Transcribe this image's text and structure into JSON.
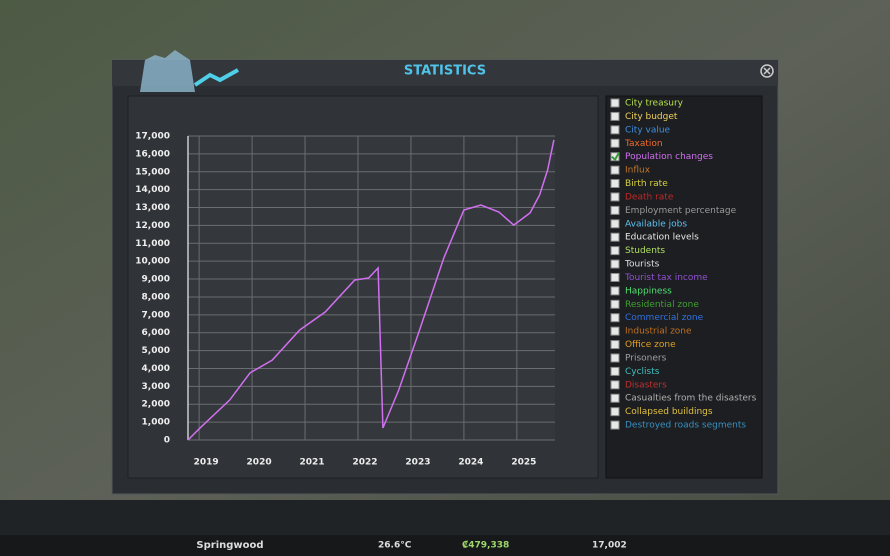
{
  "window": {
    "title": "STATISTICS"
  },
  "chart": {
    "type": "line",
    "color": "#d070f0",
    "x": [
      2018.79,
      2019.02,
      2019.58,
      2019.96,
      2020.38,
      2020.9,
      2021.38,
      2021.94,
      2022.2,
      2022.38,
      2022.47,
      2022.77,
      2023.15,
      2023.62,
      2024.0,
      2024.32,
      2024.66,
      2024.94,
      2025.25,
      2025.43,
      2025.58,
      2025.7
    ],
    "values": [
      0,
      680,
      2240,
      3750,
      4470,
      6150,
      7160,
      8950,
      9060,
      9620,
      670,
      2800,
      6040,
      10180,
      12860,
      13140,
      12750,
      12020,
      12700,
      13700,
      15100,
      16780
    ],
    "xlim": [
      2018.79,
      2025.72
    ],
    "xticks": [
      2019,
      2020,
      2021,
      2022,
      2023,
      2024,
      2025
    ],
    "ylim": [
      0,
      17000
    ],
    "yticks": [
      0,
      {
        "value": 1000,
        "label": "1,000"
      },
      {
        "value": 2000,
        "label": "2,000"
      },
      {
        "value": 3000,
        "label": "3,000"
      },
      {
        "value": 4000,
        "label": "4,000"
      },
      {
        "value": 5000,
        "label": "5,000"
      },
      {
        "value": 6000,
        "label": "6,000"
      },
      {
        "value": 7000,
        "label": "7,000"
      },
      {
        "value": 8000,
        "label": "8,000"
      },
      {
        "value": 9000,
        "label": "9,000"
      },
      {
        "value": 10000,
        "label": "10,000"
      },
      {
        "value": 11000,
        "label": "11,000"
      },
      {
        "value": 12000,
        "label": "12,000"
      },
      {
        "value": 13000,
        "label": "13,000"
      },
      {
        "value": 14000,
        "label": "14,000"
      },
      {
        "value": 15000,
        "label": "15,000"
      },
      {
        "value": 16000,
        "label": "16,000"
      },
      {
        "value": 17000,
        "label": "17,000"
      }
    ],
    "grid": true
  },
  "legend": {
    "items": [
      {
        "label": "City treasury",
        "color": "#b5e04a",
        "checked": false
      },
      {
        "label": "City budget",
        "color": "#f0d25a",
        "checked": false
      },
      {
        "label": "City value",
        "color": "#3d8fe0",
        "checked": false
      },
      {
        "label": "Taxation",
        "color": "#f06a2a",
        "checked": false
      },
      {
        "label": "Population changes",
        "color": "#d070f0",
        "checked": true
      },
      {
        "label": "Influx",
        "color": "#c0762a",
        "checked": false
      },
      {
        "label": "Birth rate",
        "color": "#d8d040",
        "checked": false
      },
      {
        "label": "Death rate",
        "color": "#c02828",
        "checked": false
      },
      {
        "label": "Employment percentage",
        "color": "#9a9a9a",
        "checked": false
      },
      {
        "label": "Available jobs",
        "color": "#60c0f0",
        "checked": false
      },
      {
        "label": "Education levels",
        "color": "#e8e8e8",
        "checked": false
      },
      {
        "label": "Students",
        "color": "#b0e060",
        "checked": false
      },
      {
        "label": "Tourists",
        "color": "#e0e0e0",
        "checked": false
      },
      {
        "label": "Tourist tax income",
        "color": "#9050d0",
        "checked": false
      },
      {
        "label": "Happiness",
        "color": "#50e070",
        "checked": false
      },
      {
        "label": "Residential zone",
        "color": "#40a030",
        "checked": false
      },
      {
        "label": "Commercial zone",
        "color": "#3070e0",
        "checked": false
      },
      {
        "label": "Industrial zone",
        "color": "#c07020",
        "checked": false
      },
      {
        "label": "Office zone",
        "color": "#e0a020",
        "checked": false
      },
      {
        "label": "Prisoners",
        "color": "#a0a0a0",
        "checked": false
      },
      {
        "label": "Cyclists",
        "color": "#40c0c0",
        "checked": false
      },
      {
        "label": "Disasters",
        "color": "#c03030",
        "checked": false
      },
      {
        "label": "Casualties from the disasters",
        "color": "#b0b0b0",
        "checked": false
      },
      {
        "label": "Collapsed buildings",
        "color": "#e0c040",
        "checked": false
      },
      {
        "label": "Destroyed roads segments",
        "color": "#3890c0",
        "checked": false
      }
    ]
  },
  "toolbar": {
    "city_name": "Springwood",
    "temperature": "26.6°C",
    "money": "₡479,338",
    "population": "17,002"
  }
}
